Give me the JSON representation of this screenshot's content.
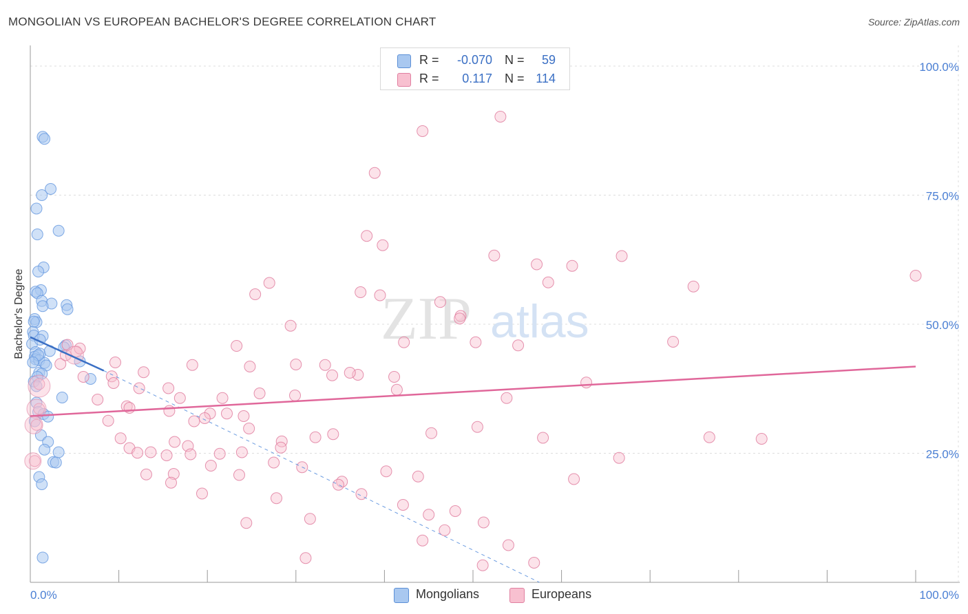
{
  "header": {
    "title": "MONGOLIAN VS EUROPEAN BACHELOR'S DEGREE CORRELATION CHART",
    "source": "Source: ZipAtlas.com"
  },
  "legend": {
    "rows": [
      {
        "r_label": "R =",
        "r_value": "-0.070",
        "n_label": "N =",
        "n_value": "59",
        "color": "#a9c8f0",
        "border": "#5b8fd6"
      },
      {
        "r_label": "R =",
        "r_value": "0.117",
        "n_label": "N =",
        "n_value": "114",
        "color": "#f8c0d0",
        "border": "#e07fa0"
      }
    ],
    "bottom": [
      {
        "label": "Mongolians",
        "color": "#a9c8f0",
        "border": "#5b8fd6"
      },
      {
        "label": "Europeans",
        "color": "#f8c0d0",
        "border": "#e07fa0"
      }
    ]
  },
  "watermark": {
    "zip": "ZIP",
    "atlas": "atlas"
  },
  "chart_data": {
    "type": "scatter",
    "title": "MONGOLIAN VS EUROPEAN BACHELOR'S DEGREE CORRELATION CHART",
    "xlabel": "",
    "ylabel": "Bachelor's Degree",
    "xlim": [
      0,
      100
    ],
    "ylim": [
      0,
      100
    ],
    "x_tick_labels": [
      "0.0%",
      "100.0%"
    ],
    "y_tick_labels": [
      "100.0%",
      "75.0%",
      "50.0%",
      "25.0%"
    ],
    "y_ticks": [
      100,
      75,
      50,
      25
    ],
    "grid": true,
    "series": [
      {
        "name": "Mongolians",
        "color": "#6a9be0",
        "fill": "#a9c8f0",
        "trend": {
          "x0": 0,
          "y0": 47.5,
          "x1": 8.3,
          "y1": 41.0,
          "dash_to": [
            57.5,
            0
          ]
        },
        "points": [
          [
            1.4,
            86.3
          ],
          [
            1.6,
            85.9
          ],
          [
            2.3,
            76.2
          ],
          [
            1.3,
            75.0
          ],
          [
            0.7,
            72.4
          ],
          [
            3.2,
            68.1
          ],
          [
            0.8,
            67.4
          ],
          [
            1.5,
            61.0
          ],
          [
            0.9,
            60.2
          ],
          [
            1.2,
            56.6
          ],
          [
            0.6,
            56.3
          ],
          [
            0.8,
            56.0
          ],
          [
            1.3,
            54.5
          ],
          [
            2.4,
            54.0
          ],
          [
            1.4,
            53.5
          ],
          [
            4.1,
            53.7
          ],
          [
            4.2,
            52.9
          ],
          [
            0.5,
            51.0
          ],
          [
            0.7,
            50.4
          ],
          [
            0.3,
            48.5
          ],
          [
            0.4,
            47.8
          ],
          [
            1.4,
            47.7
          ],
          [
            0.2,
            46.2
          ],
          [
            4.0,
            45.9
          ],
          [
            3.8,
            45.5
          ],
          [
            0.6,
            44.6
          ],
          [
            1.1,
            44.3
          ],
          [
            0.5,
            43.7
          ],
          [
            0.6,
            43.2
          ],
          [
            1.0,
            43.0
          ],
          [
            1.6,
            42.5
          ],
          [
            1.8,
            42.0
          ],
          [
            5.6,
            42.8
          ],
          [
            1.0,
            40.6
          ],
          [
            1.3,
            40.4
          ],
          [
            0.8,
            39.8
          ],
          [
            6.8,
            39.4
          ],
          [
            0.4,
            38.9
          ],
          [
            0.7,
            38.0
          ],
          [
            3.6,
            35.8
          ],
          [
            0.7,
            34.8
          ],
          [
            0.9,
            33.0
          ],
          [
            1.5,
            32.6
          ],
          [
            2.0,
            32.1
          ],
          [
            0.5,
            31.2
          ],
          [
            1.2,
            28.5
          ],
          [
            2.0,
            27.2
          ],
          [
            1.6,
            25.7
          ],
          [
            3.2,
            25.2
          ],
          [
            2.6,
            23.3
          ],
          [
            2.9,
            23.2
          ],
          [
            1.0,
            20.4
          ],
          [
            1.3,
            19.0
          ],
          [
            1.4,
            4.8
          ],
          [
            0.9,
            44.0
          ],
          [
            0.4,
            50.5
          ],
          [
            1.1,
            47.0
          ],
          [
            2.2,
            44.8
          ],
          [
            0.3,
            42.6
          ]
        ]
      },
      {
        "name": "Europeans",
        "color": "#e07fa0",
        "fill": "#f8c0d0",
        "trend": {
          "x0": 0,
          "y0": 32.2,
          "x1": 100,
          "y1": 41.8
        },
        "points": [
          [
            53.1,
            90.2
          ],
          [
            44.3,
            87.4
          ],
          [
            38.9,
            79.3
          ],
          [
            38.0,
            67.1
          ],
          [
            39.8,
            65.3
          ],
          [
            52.4,
            63.3
          ],
          [
            66.8,
            63.2
          ],
          [
            57.2,
            61.6
          ],
          [
            61.2,
            61.3
          ],
          [
            100,
            59.4
          ],
          [
            27.0,
            58.0
          ],
          [
            58.5,
            58.1
          ],
          [
            74.9,
            57.3
          ],
          [
            37.3,
            56.2
          ],
          [
            39.5,
            55.6
          ],
          [
            25.4,
            55.8
          ],
          [
            46.3,
            54.3
          ],
          [
            48.6,
            51.6
          ],
          [
            48.5,
            51.1
          ],
          [
            29.4,
            49.7
          ],
          [
            50.3,
            46.5
          ],
          [
            72.6,
            46.6
          ],
          [
            55.1,
            45.9
          ],
          [
            42.2,
            46.5
          ],
          [
            23.3,
            45.8
          ],
          [
            4.2,
            46.0
          ],
          [
            5.2,
            44.7
          ],
          [
            9.6,
            42.6
          ],
          [
            24.8,
            41.8
          ],
          [
            18.3,
            42.1
          ],
          [
            30.0,
            42.2
          ],
          [
            33.3,
            42.1
          ],
          [
            12.8,
            40.7
          ],
          [
            34.1,
            40.1
          ],
          [
            37.0,
            40.2
          ],
          [
            36.1,
            40.6
          ],
          [
            41.1,
            39.8
          ],
          [
            6.0,
            39.8
          ],
          [
            9.2,
            39.9
          ],
          [
            62.8,
            38.7
          ],
          [
            9.4,
            38.6
          ],
          [
            12.3,
            37.6
          ],
          [
            15.6,
            37.6
          ],
          [
            41.4,
            37.3
          ],
          [
            25.9,
            36.6
          ],
          [
            29.9,
            36.2
          ],
          [
            7.6,
            35.4
          ],
          [
            16.9,
            35.7
          ],
          [
            21.7,
            35.7
          ],
          [
            53.8,
            35.7
          ],
          [
            10.9,
            34.1
          ],
          [
            11.2,
            33.8
          ],
          [
            8.8,
            31.3
          ],
          [
            15.7,
            33.2
          ],
          [
            20.3,
            32.7
          ],
          [
            18.5,
            31.2
          ],
          [
            22.2,
            32.7
          ],
          [
            24.1,
            32.2
          ],
          [
            19.7,
            31.8
          ],
          [
            10.2,
            27.9
          ],
          [
            11.2,
            26.0
          ],
          [
            24.7,
            29.8
          ],
          [
            34.2,
            28.7
          ],
          [
            45.3,
            28.9
          ],
          [
            50.5,
            30.1
          ],
          [
            76.7,
            28.1
          ],
          [
            57.9,
            28.0
          ],
          [
            32.2,
            28.1
          ],
          [
            16.3,
            27.2
          ],
          [
            28.4,
            27.3
          ],
          [
            12.1,
            25.1
          ],
          [
            13.6,
            25.2
          ],
          [
            17.8,
            26.4
          ],
          [
            15.4,
            24.6
          ],
          [
            18.1,
            24.8
          ],
          [
            21.4,
            24.9
          ],
          [
            28.3,
            26.1
          ],
          [
            23.9,
            25.2
          ],
          [
            66.5,
            24.1
          ],
          [
            27.5,
            23.2
          ],
          [
            20.4,
            22.6
          ],
          [
            30.7,
            22.3
          ],
          [
            40.2,
            21.5
          ],
          [
            13.1,
            20.9
          ],
          [
            16.2,
            21.0
          ],
          [
            23.6,
            20.8
          ],
          [
            43.8,
            20.5
          ],
          [
            61.4,
            20.0
          ],
          [
            35.2,
            19.5
          ],
          [
            34.8,
            18.9
          ],
          [
            15.9,
            19.3
          ],
          [
            19.4,
            17.2
          ],
          [
            37.4,
            17.1
          ],
          [
            27.8,
            16.3
          ],
          [
            42.1,
            15.0
          ],
          [
            48.0,
            13.8
          ],
          [
            45.0,
            13.1
          ],
          [
            51.2,
            11.6
          ],
          [
            31.6,
            12.3
          ],
          [
            24.4,
            11.5
          ],
          [
            46.8,
            10.1
          ],
          [
            44.3,
            8.1
          ],
          [
            54.0,
            7.2
          ],
          [
            31.1,
            4.7
          ],
          [
            51.1,
            3.3
          ],
          [
            56.9,
            3.8
          ],
          [
            82.6,
            27.8
          ],
          [
            1.0,
            38.4
          ],
          [
            1.0,
            33.6
          ],
          [
            0.7,
            30.5
          ],
          [
            0.5,
            23.5
          ],
          [
            3.4,
            42.3
          ],
          [
            5.6,
            45.3
          ],
          [
            4.0,
            44.0
          ]
        ]
      }
    ]
  }
}
